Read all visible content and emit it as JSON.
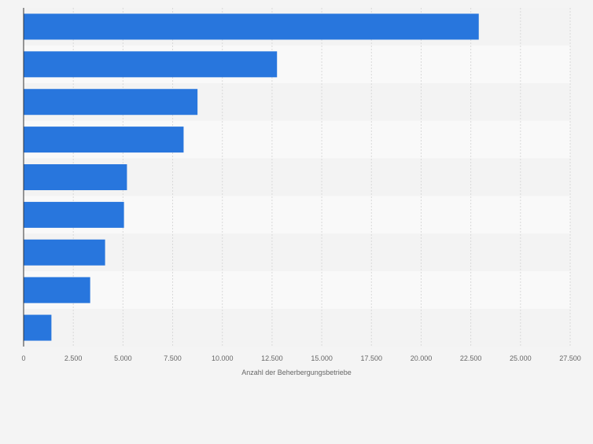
{
  "chart_data": {
    "type": "bar",
    "orientation": "horizontal",
    "categories": [
      "",
      "",
      "",
      "",
      "",
      "",
      "",
      "",
      ""
    ],
    "values": [
      22900,
      12750,
      8750,
      8050,
      5200,
      5050,
      4100,
      3350,
      1400
    ],
    "xlabel": "Anzahl der Beherbergungsbetriebe",
    "ylabel": "",
    "xlim": [
      0,
      27500
    ],
    "xticks": [
      0,
      2500,
      5000,
      7500,
      10000,
      12500,
      15000,
      17500,
      20000,
      22500,
      25000,
      27500
    ],
    "xtick_labels": [
      "0",
      "2.500",
      "5.000",
      "7.500",
      "10.000",
      "12.500",
      "15.000",
      "17.500",
      "20.000",
      "22.500",
      "25.000",
      "27.500"
    ],
    "grid": true,
    "legend": "none"
  },
  "colors": {
    "bar": "#2876dd",
    "band_dark": "#f3f3f3",
    "band_light": "#f9f9f9",
    "page_background": "#f4f4f4",
    "gridline": "#d9d9d9",
    "axis_line": "#333333",
    "tick_label": "#666666"
  }
}
